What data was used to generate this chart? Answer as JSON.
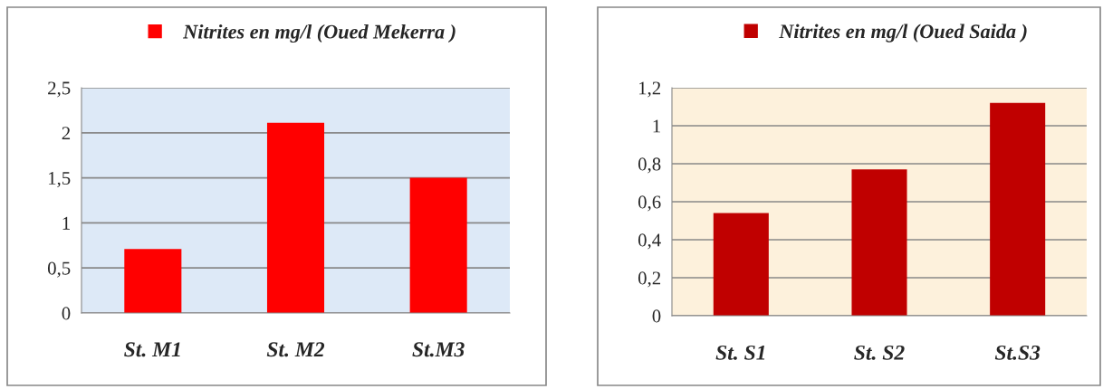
{
  "chart_data": [
    {
      "type": "bar",
      "categories": [
        "St. M1",
        "St. M2",
        "St.M3"
      ],
      "series": [
        {
          "name": "Nitrites en mg/l (Oued Mekerra )",
          "color": "#ff0000",
          "values": [
            0.71,
            2.11,
            1.5
          ]
        }
      ],
      "ylim": [
        0,
        2.5
      ],
      "yticks": [
        0,
        {
          "value": 0.5,
          "label": "0,5"
        },
        1,
        {
          "value": 1.5,
          "label": "1,5"
        },
        2,
        {
          "value": 2.5,
          "label": "2,5"
        }
      ],
      "grid": "y",
      "legend": "top"
    },
    {
      "type": "bar",
      "categories": [
        "St. S1",
        "St. S2",
        "St.S3"
      ],
      "series": [
        {
          "name": "Nitrites en mg/l (Oued Saida )",
          "color": "#c00000",
          "values": [
            0.54,
            0.77,
            1.12
          ]
        }
      ],
      "ylim": [
        0,
        1.2
      ],
      "yticks": [
        0,
        {
          "value": 0.2,
          "label": "0,2"
        },
        {
          "value": 0.4,
          "label": "0,4"
        },
        {
          "value": 0.6,
          "label": "0,6"
        },
        {
          "value": 0.8,
          "label": "0,8"
        },
        1,
        {
          "value": 1.2,
          "label": "1,2"
        }
      ],
      "grid": "y",
      "legend": "top"
    }
  ]
}
